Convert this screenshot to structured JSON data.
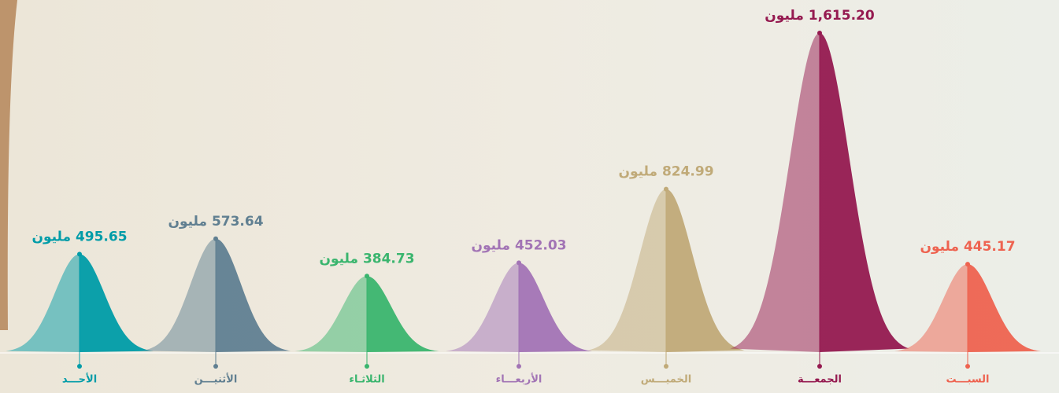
{
  "chart_data": {
    "type": "bell",
    "categories": [
      "الأحـــد",
      "الأثنيـــن",
      "الثلاثـاء",
      "الأربعـــاء",
      "الخميـــس",
      "الجمعـــة",
      "السبـــت"
    ],
    "values": [
      495.65,
      573.64,
      384.73,
      452.03,
      824.99,
      1615.2,
      445.17
    ],
    "value_labels": [
      "495.65 مليون",
      "573.64 مليون",
      "384.73 مليون",
      "452.03 مليون",
      "824.99 مليون",
      "1,615.20 مليون",
      "445.17 مليون"
    ],
    "colors": [
      "#009ca8",
      "#607f91",
      "#3ab56e",
      "#a274b5",
      "#c0aa78",
      "#951a50",
      "#ee6350"
    ]
  }
}
